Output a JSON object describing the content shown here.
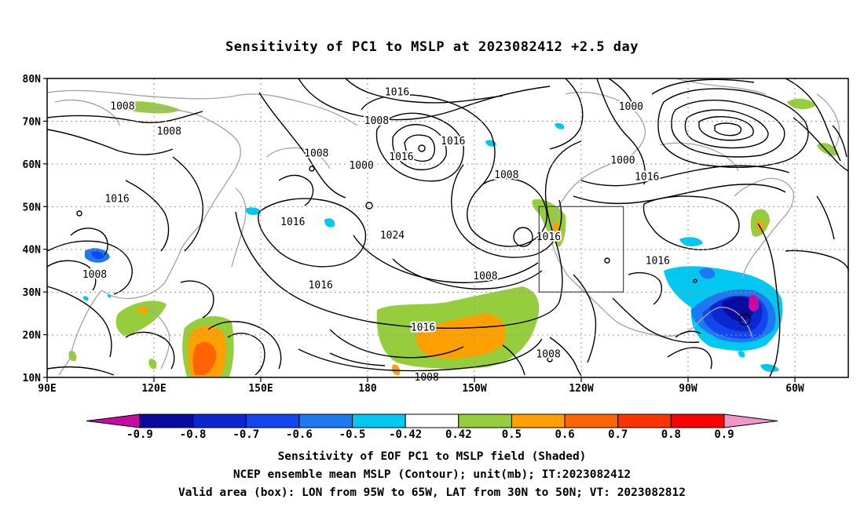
{
  "title": "Sensitivity of PC1 to MSLP at 2023082412 +2.5 day",
  "lat_labels": [
    "80N",
    "70N",
    "60N",
    "50N",
    "40N",
    "30N",
    "20N",
    "10N"
  ],
  "lon_labels": [
    "90E",
    "120E",
    "150E",
    "180",
    "150W",
    "120W",
    "90W",
    "60W"
  ],
  "contour_labels": [
    {
      "text": "1016",
      "lon": -145.5,
      "lat": 76.8
    },
    {
      "text": "1008",
      "lon": 116.8,
      "lat": 73.5
    },
    {
      "text": "1000",
      "lon": -62.3,
      "lat": 73.4
    },
    {
      "text": "1008",
      "lon": -152.8,
      "lat": 70.1
    },
    {
      "text": "1008",
      "lon": 133.4,
      "lat": 67.6
    },
    {
      "text": "1016",
      "lon": -125.6,
      "lat": 65.3
    },
    {
      "text": "1008",
      "lon": -174.2,
      "lat": 62.5
    },
    {
      "text": "1016",
      "lon": -144.0,
      "lat": 61.6
    },
    {
      "text": "1000",
      "lon": -65.2,
      "lat": 60.8
    },
    {
      "text": "1000",
      "lon": -158.2,
      "lat": 59.6
    },
    {
      "text": "1008",
      "lon": -106.6,
      "lat": 57.4
    },
    {
      "text": "1016",
      "lon": -56.6,
      "lat": 56.9
    },
    {
      "text": "1016",
      "lon": 114.9,
      "lat": 51.8
    },
    {
      "text": "1016",
      "lon": 177.4,
      "lat": 46.4
    },
    {
      "text": "1024",
      "lon": -147.2,
      "lat": 43.3
    },
    {
      "text": "1016",
      "lon": -91.6,
      "lat": 42.9
    },
    {
      "text": "1016",
      "lon": -52.8,
      "lat": 37.3
    },
    {
      "text": "1008",
      "lon": 106.9,
      "lat": 34.1
    },
    {
      "text": "1008",
      "lon": -114.1,
      "lat": 33.7
    },
    {
      "text": "1016",
      "lon": -172.7,
      "lat": 31.6
    },
    {
      "text": "1016",
      "lon": -136.3,
      "lat": 21.7
    },
    {
      "text": "1008",
      "lon": -91.7,
      "lat": 15.4
    },
    {
      "text": "1008",
      "lon": -135.0,
      "lat": 10.0
    }
  ],
  "valid_box": {
    "lon_min": -95,
    "lon_max": -65,
    "lat_min": 30,
    "lat_max": 50
  },
  "colorbar": {
    "boundaries": [
      "-0.9",
      "-0.8",
      "-0.7",
      "-0.6",
      "-0.5",
      "-0.42",
      "0.42",
      "0.5",
      "0.6",
      "0.7",
      "0.8",
      "0.9"
    ],
    "colors": [
      "#c80aa0",
      "#0a0aa0",
      "#0a28d2",
      "#1446f0",
      "#1e78f0",
      "#00c8f0",
      "#ffffff",
      "#96cd3c",
      "#ffa000",
      "#ff6400",
      "#ff3200",
      "#ff0000",
      "#f096c8"
    ]
  },
  "caption": {
    "line1": "Sensitivity of EOF PC1 to MSLP field (Shaded)",
    "line2": "NCEP ensemble mean MSLP (Contour); unit(mb); IT:2023082412",
    "line3": "Valid area (box): LON from 95W to 65W, LAT from 30N to 50N; VT: 2023082812"
  }
}
